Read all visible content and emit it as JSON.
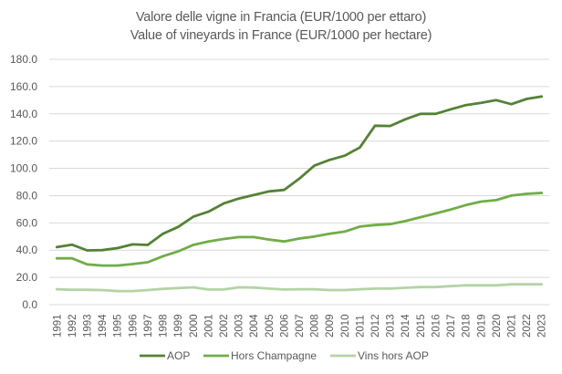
{
  "chart_data": {
    "type": "line",
    "title": "Valore delle vigne in Francia (EUR/1000 per ettaro)",
    "subtitle": "Value of vineyards in France (EUR/1000 per hectare)",
    "xlabel": "",
    "ylabel": "",
    "ylim": [
      0,
      180
    ],
    "yticks": [
      "0.0",
      "20.0",
      "40.0",
      "60.0",
      "80.0",
      "100.0",
      "120.0",
      "140.0",
      "160.0",
      "180.0"
    ],
    "ytick_values": [
      0,
      20,
      40,
      60,
      80,
      100,
      120,
      140,
      160,
      180
    ],
    "grid": true,
    "legend_position": "bottom",
    "categories": [
      "1991",
      "1992",
      "1993",
      "1994",
      "1995",
      "1996",
      "1997",
      "1998",
      "1999",
      "2000",
      "2001",
      "2002",
      "2003",
      "2004",
      "2005",
      "2006",
      "2007",
      "2008",
      "2009",
      "2010",
      "2011",
      "2012",
      "2013",
      "2014",
      "2015",
      "2016",
      "2017",
      "2018",
      "2019",
      "2020",
      "2021",
      "2022",
      "2023"
    ],
    "series": [
      {
        "name": "AOP",
        "color": "#548235",
        "values": [
          42.2,
          44.0,
          39.8,
          40.0,
          41.5,
          44.2,
          43.8,
          52.0,
          57.0,
          64.5,
          68.2,
          74.2,
          77.8,
          80.4,
          83.1,
          84.2,
          92.4,
          102.0,
          106.2,
          109.3,
          115.3,
          131.3,
          131.1,
          136.0,
          140.0,
          140.0,
          143.3,
          146.4,
          148.0,
          150.0,
          147.1,
          150.9,
          152.7
        ]
      },
      {
        "name": "Hors Champagne",
        "color": "#70AD47",
        "values": [
          34.0,
          34.0,
          29.6,
          28.7,
          28.7,
          29.8,
          31.1,
          35.5,
          39.1,
          43.8,
          46.4,
          48.2,
          49.6,
          49.6,
          47.8,
          46.4,
          48.5,
          50.0,
          52.0,
          53.6,
          57.3,
          58.4,
          59.1,
          61.3,
          64.2,
          66.9,
          69.8,
          73.1,
          75.6,
          76.7,
          80.0,
          81.3,
          82.0
        ]
      },
      {
        "name": "Vins hors AOP",
        "color": "#B4D3A6",
        "values": [
          11.3,
          10.9,
          10.9,
          10.7,
          10.0,
          10.0,
          10.7,
          11.6,
          12.2,
          12.7,
          11.1,
          11.1,
          12.7,
          12.6,
          11.8,
          11.1,
          11.3,
          11.3,
          10.7,
          10.7,
          11.3,
          11.8,
          11.8,
          12.4,
          12.9,
          12.9,
          13.6,
          14.2,
          14.2,
          14.2,
          14.9,
          14.9,
          15.0
        ]
      }
    ]
  }
}
